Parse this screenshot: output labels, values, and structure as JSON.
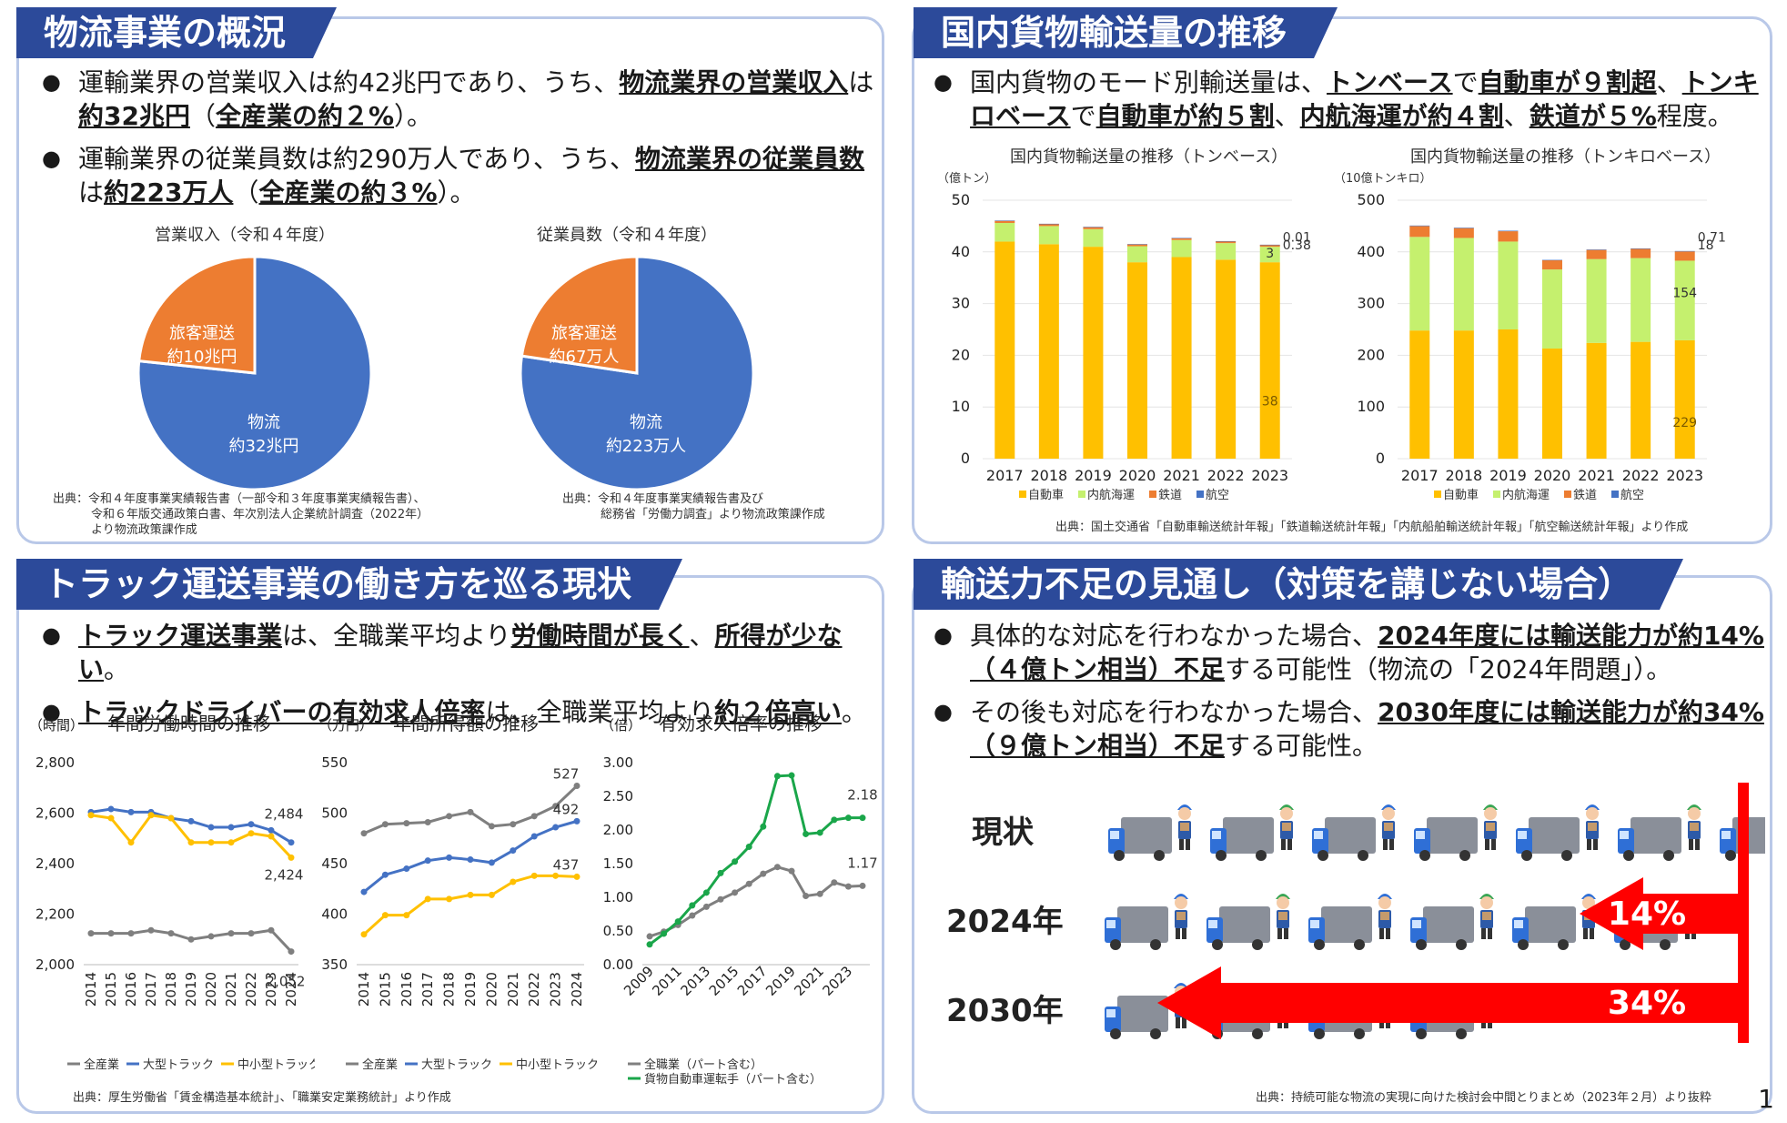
{
  "colors": {
    "navy": "#2c4a9a",
    "pie_blue": "#4472c4",
    "pie_orange": "#ed7d31",
    "car": "#ffc000",
    "ship": "#c5f06e",
    "rail": "#ed7d31",
    "air": "#4472c4",
    "gray": "#7f7f7f",
    "green": "#1aa64a",
    "red": "#ff0000"
  },
  "p1": {
    "title": "物流事業の概況",
    "b1": {
      "t1": "運輸業界の営業収入は約42兆円であり、うち、",
      "s1": "物流業界の営業収入",
      "t2": "は",
      "s2": "約32兆円",
      "t3": "（",
      "s3": "全産業の約２%",
      "t4": "）。"
    },
    "b2": {
      "t1": "運輸業界の従業員数は約290万人であり、うち、",
      "s1": "物流業界の従業員数",
      "t2": "は",
      "s2": "約223万人",
      "t3": "（",
      "s3": "全産業の約３%",
      "t4": "）。"
    },
    "pie1_title": "営業収入（令和４年度）",
    "pie2_title": "従業員数（令和４年度）",
    "src1": [
      "出典：令和４年度事業実績報告書（一部令和３年度事業実績報告書）、",
      "令和６年版交通政策白書、年次別法人企業統計調査（2022年）",
      "より物流政策課作成"
    ],
    "src2": [
      "出典：令和４年度事業実績報告書及び",
      "総務省「労働力調査」より物流政策課作成"
    ]
  },
  "p2": {
    "title": "国内貨物輸送量の推移",
    "b1": {
      "t1": "国内貨物のモード別輸送量は、",
      "s1": "トンベース",
      "t2": "で",
      "s2": "自動車が９割超",
      "t3": "、",
      "s3": "トンキロベース",
      "t4": "で",
      "s4": "自動車が約５割",
      "t5": "、",
      "s5": "内航海運が約４割",
      "t6": "、",
      "s6": "鉄道が５%",
      "t7": "程度。"
    },
    "c1_title": "国内貨物輸送量の推移（トンベース）",
    "c1_unit": "（億トン）",
    "c2_title": "国内貨物輸送量の推移（トンキロベース）",
    "c2_unit": "（10億トンキロ）",
    "source": "出典：国土交通省「自動車輸送統計年報」「鉄道輸送統計年報」「内航船舶輸送統計年報」「航空輸送統計年報」より作成"
  },
  "p3": {
    "title": "トラック運送事業の働き方を巡る現状",
    "b1": {
      "s1": "トラック運送事業",
      "t1": "は、全職業平均より",
      "s2": "労働時間が長く",
      "t2": "、",
      "s3": "所得が少ない",
      "t3": "。"
    },
    "b2": {
      "s1": "トラックドライバーの有効求人倍率",
      "t1": "は、全職業平均より",
      "s2": "約２倍高い",
      "t2": "。"
    },
    "source": "出典：厚生労働省「賃金構造基本統計」、「職業安定業務統計」より作成"
  },
  "p4": {
    "title": "輸送力不足の見通し（対策を講じない場合）",
    "b1": {
      "t1": "具体的な対応を行わなかった場合、",
      "s1": "2024年度には輸送能力が約14%（４億トン相当）不足",
      "t2": "する可能性（物流の「2024年問題」）。"
    },
    "b2": {
      "t1": "その後も対応を行わなかった場合、",
      "s1": "2030年度には輸送能力が約34%（９億トン相当）不足",
      "t2": "する可能性。"
    },
    "rows": [
      {
        "label": "現状"
      },
      {
        "label": "2024年",
        "pct": "14%"
      },
      {
        "label": "2030年",
        "pct": "34%"
      }
    ],
    "source": "出典：持続可能な物流の実現に向けた検討会中間とりまとめ（2023年２月）より抜粋",
    "page": "1"
  },
  "chart_data": [
    {
      "type": "pie",
      "title": "営業収入（令和４年度）",
      "slices": [
        {
          "label": "物流",
          "value_label": "約32兆円",
          "value": 32
        },
        {
          "label": "旅客運送",
          "value_label": "約10兆円",
          "value": 10
        }
      ]
    },
    {
      "type": "pie",
      "title": "従業員数（令和４年度）",
      "slices": [
        {
          "label": "物流",
          "value_label": "約223万人",
          "value": 223
        },
        {
          "label": "旅客運送",
          "value_label": "約67万人",
          "value": 67
        }
      ]
    },
    {
      "type": "bar",
      "stacked": true,
      "title": "国内貨物輸送量の推移（トンベース）",
      "ylabel": "（億トン）",
      "ylim": [
        0,
        50
      ],
      "yticks": [
        0,
        10,
        20,
        30,
        40,
        50
      ],
      "categories": [
        "2017",
        "2018",
        "2019",
        "2020",
        "2021",
        "2022",
        "2023"
      ],
      "series": [
        {
          "name": "自動車",
          "values": [
            42,
            41.5,
            41,
            38,
            39,
            38.5,
            38
          ]
        },
        {
          "name": "内航海運",
          "values": [
            3.6,
            3.5,
            3.4,
            3.1,
            3.3,
            3.2,
            3
          ]
        },
        {
          "name": "鉄道",
          "values": [
            0.45,
            0.43,
            0.43,
            0.39,
            0.39,
            0.38,
            0.38
          ]
        },
        {
          "name": "航空",
          "values": [
            0.01,
            0.01,
            0.01,
            0.01,
            0.01,
            0.01,
            0.01
          ]
        }
      ],
      "labels_2023": {
        "自動車": "38",
        "内航海運": "3",
        "鉄道": "0.38",
        "航空": "0.01"
      },
      "legend": "bottom"
    },
    {
      "type": "bar",
      "stacked": true,
      "title": "国内貨物輸送量の推移（トンキロベース）",
      "ylabel": "（10億トンキロ）",
      "ylim": [
        0,
        500
      ],
      "yticks": [
        0,
        100,
        200,
        300,
        400,
        500
      ],
      "categories": [
        "2017",
        "2018",
        "2019",
        "2020",
        "2021",
        "2022",
        "2023"
      ],
      "series": [
        {
          "name": "自動車",
          "values": [
            248,
            248,
            250,
            213,
            224,
            226,
            229
          ]
        },
        {
          "name": "内航海運",
          "values": [
            181,
            179,
            170,
            153,
            162,
            162,
            154
          ]
        },
        {
          "name": "鉄道",
          "values": [
            21,
            19,
            20,
            18,
            18,
            18,
            18
          ]
        },
        {
          "name": "航空",
          "values": [
            1,
            1,
            1,
            0.5,
            0.6,
            0.7,
            0.71
          ]
        }
      ],
      "labels_2023": {
        "自動車": "229",
        "内航海運": "154",
        "鉄道": "18",
        "航空": "0.71"
      },
      "legend": "bottom"
    },
    {
      "type": "line",
      "title": "年間労働時間の推移",
      "ylabel": "（時間）",
      "ylim": [
        2000,
        2800
      ],
      "yticks": [
        "2,000",
        "2,200",
        "2,400",
        "2,600",
        "2,800"
      ],
      "x": [
        "2014",
        "2015",
        "2016",
        "2017",
        "2018",
        "2019",
        "2020",
        "2021",
        "2022",
        "2023",
        "2024"
      ],
      "series": [
        {
          "name": "全産業",
          "values": [
            2124,
            2124,
            2124,
            2136,
            2124,
            2100,
            2112,
            2124,
            2124,
            2136,
            2052
          ]
        },
        {
          "name": "大型トラック",
          "values": [
            2604,
            2616,
            2604,
            2604,
            2580,
            2568,
            2544,
            2544,
            2556,
            2532,
            2484
          ]
        },
        {
          "name": "中小型トラック",
          "values": [
            2592,
            2580,
            2484,
            2592,
            2580,
            2484,
            2484,
            2484,
            2520,
            2508,
            2424
          ]
        }
      ],
      "end_labels": [
        "2,052",
        "2,484",
        "2,424"
      ],
      "legend": "bottom"
    },
    {
      "type": "line",
      "title": "年間所得額の推移",
      "ylabel": "（万円）",
      "ylim": [
        350,
        550
      ],
      "yticks": [
        "350",
        "400",
        "450",
        "500",
        "550"
      ],
      "x": [
        "2014",
        "2015",
        "2016",
        "2017",
        "2018",
        "2019",
        "2020",
        "2021",
        "2022",
        "2023",
        "2024"
      ],
      "series": [
        {
          "name": "全産業",
          "values": [
            480,
            489,
            490,
            491,
            497,
            501,
            487,
            489,
            497,
            507,
            527
          ]
        },
        {
          "name": "大型トラック",
          "values": [
            422,
            439,
            445,
            453,
            456,
            454,
            451,
            463,
            477,
            486,
            492
          ]
        },
        {
          "name": "中小型トラック",
          "values": [
            380,
            399,
            399,
            415,
            415,
            419,
            419,
            432,
            438,
            438,
            437
          ]
        }
      ],
      "end_labels": [
        "527",
        "492",
        "437"
      ],
      "legend": "bottom"
    },
    {
      "type": "line",
      "title": "有効求人倍率の推移",
      "ylabel": "（倍）",
      "ylim": [
        0,
        3
      ],
      "yticks": [
        "0.00",
        "0.50",
        "1.00",
        "1.50",
        "2.00",
        "2.50",
        "3.00"
      ],
      "x": [
        "2009",
        "2010",
        "2011",
        "2012",
        "2013",
        "2014",
        "2015",
        "2016",
        "2017",
        "2018",
        "2019",
        "2020",
        "2021",
        "2022",
        "2023",
        "2024"
      ],
      "xtick_labels": [
        "2009",
        "2011",
        "2013",
        "2015",
        "2017",
        "2019",
        "2021",
        "2023"
      ],
      "series": [
        {
          "name": "全職業（パート含む）",
          "values": [
            0.42,
            0.49,
            0.59,
            0.73,
            0.86,
            0.97,
            1.07,
            1.2,
            1.35,
            1.45,
            1.39,
            1.02,
            1.05,
            1.22,
            1.16,
            1.17
          ]
        },
        {
          "name": "貨物自動車運転手（パート含む）",
          "values": [
            0.3,
            0.46,
            0.64,
            0.88,
            1.07,
            1.36,
            1.53,
            1.75,
            2.05,
            2.8,
            2.81,
            1.94,
            1.96,
            2.15,
            2.18,
            2.18
          ]
        }
      ],
      "end_labels": [
        "1.17",
        "2.18"
      ],
      "legend": "bottom"
    }
  ]
}
